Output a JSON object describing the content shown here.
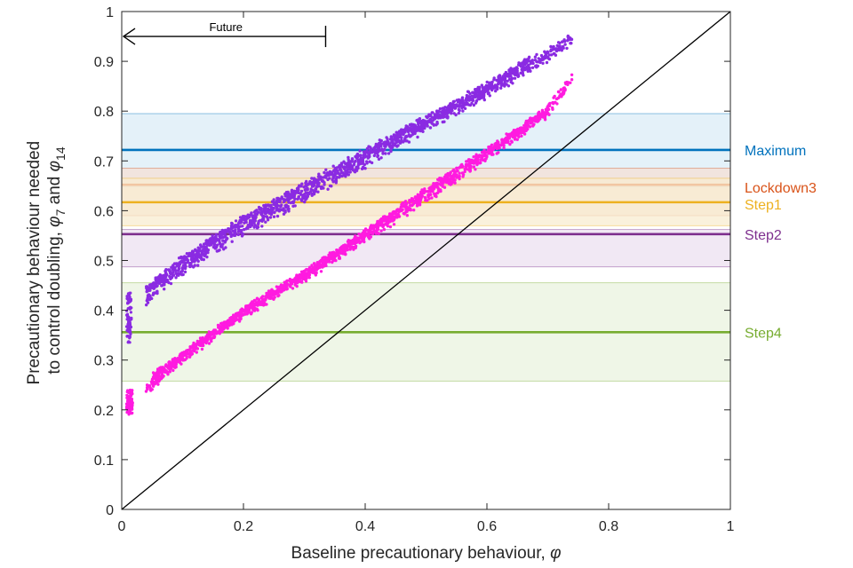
{
  "chart_data": {
    "type": "scatter",
    "xlabel_prefix": "Baseline precautionary behaviour, ",
    "xlabel_symbol": "φ",
    "ylabel_line1": "Precautionary behaviour needed",
    "ylabel_line2_prefix": "to control doubling, ",
    "ylabel_sym": "φ",
    "ylabel_sub7": "7",
    "ylabel_and": " and ",
    "ylabel_sub14": "14",
    "xlim": [
      0,
      1
    ],
    "ylim": [
      0,
      1
    ],
    "xticks": [
      "0",
      "0.2",
      "0.4",
      "0.6",
      "0.8",
      "1"
    ],
    "xtick_values": [
      0,
      0.2,
      0.4,
      0.6,
      0.8,
      1
    ],
    "yticks": [
      "0",
      "0.1",
      "0.2",
      "0.3",
      "0.4",
      "0.5",
      "0.6",
      "0.7",
      "0.8",
      "0.9",
      "1"
    ],
    "ytick_values": [
      0,
      0.1,
      0.2,
      0.3,
      0.4,
      0.5,
      0.6,
      0.7,
      0.8,
      0.9,
      1
    ],
    "annotation": {
      "text": "Future",
      "x_start": 0.335,
      "x_end": 0.0,
      "y": 0.95
    },
    "identity_line": {
      "x": [
        0,
        1
      ],
      "y": [
        0,
        1
      ],
      "color": "#000000"
    },
    "bands": [
      {
        "name": "Maximum",
        "value": 0.722,
        "low": 0.648,
        "high": 0.795,
        "color": "#0072BD",
        "fill": "#dbecf7"
      },
      {
        "name": "Lockdown3",
        "value": 0.652,
        "low": 0.59,
        "high": 0.685,
        "color": "#D95319",
        "fill": "#f6dfd4"
      },
      {
        "name": "Step1",
        "value": 0.617,
        "low": 0.57,
        "high": 0.665,
        "color": "#EDB120",
        "fill": "#f8ecd0"
      },
      {
        "name": "Step2",
        "value": 0.553,
        "low": 0.487,
        "high": 0.562,
        "color": "#7E2F8E",
        "fill": "#ece0f0"
      },
      {
        "name": "Step4",
        "value": 0.356,
        "low": 0.258,
        "high": 0.455,
        "color": "#77AC30",
        "fill": "#e9f3df"
      }
    ],
    "series": [
      {
        "color": "#8A2BE2",
        "cluster_x": [
          0.008,
          0.016
        ],
        "cluster_y": [
          0.335,
          0.435
        ],
        "bands": [
          {
            "x": [
              0.04,
              0.05,
              0.1,
              0.2,
              0.3,
              0.4,
              0.5,
              0.6,
              0.7,
              0.74
            ],
            "y": [
              0.425,
              0.435,
              0.485,
              0.563,
              0.63,
              0.7,
              0.772,
              0.84,
              0.912,
              0.945
            ],
            "spread": 0.016
          },
          {
            "x": [
              0.04,
              0.1,
              0.2,
              0.3,
              0.4,
              0.5,
              0.6,
              0.67
            ],
            "y": [
              0.44,
              0.5,
              0.58,
              0.648,
              0.715,
              0.782,
              0.85,
              0.9
            ],
            "spread": 0.012
          }
        ]
      },
      {
        "color": "#FF1BE0",
        "cluster_x": [
          0.008,
          0.018
        ],
        "cluster_y": [
          0.19,
          0.24
        ],
        "bands": [
          {
            "x": [
              0.04,
              0.1,
              0.2,
              0.3,
              0.4,
              0.5,
              0.6,
              0.7,
              0.74
            ],
            "y": [
              0.24,
              0.305,
              0.395,
              0.468,
              0.548,
              0.628,
              0.71,
              0.8,
              0.865
            ],
            "spread": 0.014
          },
          {
            "x": [
              0.05,
              0.1,
              0.2,
              0.3,
              0.4,
              0.5,
              0.6,
              0.7
            ],
            "y": [
              0.265,
              0.31,
              0.398,
              0.472,
              0.555,
              0.64,
              0.72,
              0.8
            ],
            "spread": 0.01
          }
        ]
      }
    ]
  }
}
